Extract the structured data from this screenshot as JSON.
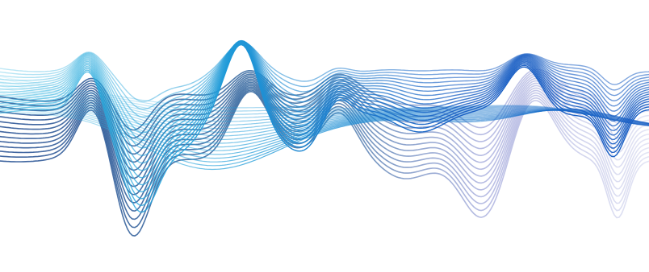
{
  "image": {
    "subject": "abstract-wave-lines",
    "background_color": "#ffffff",
    "colors": {
      "cyan": "#2fb6e0",
      "sky_blue": "#1e9ad8",
      "royal_blue": "#1a5fc4",
      "navy": "#1f4a8f",
      "steel_blue": "#3a6fa3",
      "lavender": "#9aa0d8"
    }
  }
}
